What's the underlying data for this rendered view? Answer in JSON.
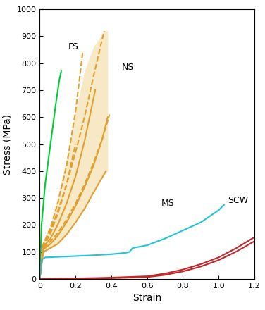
{
  "chart_data": {
    "type": "line",
    "x_label": "Strain",
    "y_label": "Stress (MPa)",
    "xlim": [
      0,
      1.2
    ],
    "xticks": [
      0,
      0.2,
      0.4,
      0.6,
      0.8,
      1.0,
      1.2
    ],
    "ylim": [
      0,
      1000
    ],
    "yticks": [
      0,
      100,
      200,
      300,
      400,
      500,
      600,
      700,
      800,
      900,
      1000
    ],
    "grid": false,
    "series": [
      {
        "type": "band",
        "color": "#f3d9a0",
        "x": [
          0,
          0.02,
          0.06,
          0.1,
          0.15,
          0.2,
          0.25,
          0.3,
          0.36,
          0.38
        ],
        "low": [
          0,
          100,
          115,
          130,
          165,
          210,
          260,
          320,
          390,
          400
        ],
        "high": [
          0,
          135,
          200,
          300,
          450,
          620,
          770,
          860,
          920,
          920
        ]
      },
      {
        "color": "#00cc33",
        "line_style": "solid",
        "x": [
          0,
          0.01,
          0.03,
          0.06,
          0.09,
          0.11,
          0.12
        ],
        "values": [
          0,
          200,
          350,
          500,
          650,
          740,
          770
        ]
      },
      {
        "color": "#e0a030",
        "line_style": "solid",
        "x": [
          0,
          0.02,
          0.06,
          0.1,
          0.15,
          0.2,
          0.25,
          0.3,
          0.37
        ],
        "values": [
          0,
          100,
          115,
          130,
          165,
          210,
          260,
          320,
          400
        ]
      },
      {
        "color": "#e0a030",
        "line_style": "solid",
        "x": [
          0,
          0.02,
          0.06,
          0.1,
          0.15,
          0.2,
          0.25,
          0.3,
          0.35,
          0.38
        ],
        "values": [
          0,
          110,
          130,
          160,
          210,
          270,
          340,
          420,
          520,
          600
        ]
      },
      {
        "color": "#e0a030",
        "line_style": "solid",
        "x": [
          0,
          0.02,
          0.06,
          0.1,
          0.15,
          0.2,
          0.25,
          0.31
        ],
        "values": [
          0,
          120,
          150,
          200,
          280,
          380,
          510,
          700
        ]
      },
      {
        "color": "#e0a030",
        "line_style": "dashed",
        "x": [
          0,
          0.02,
          0.06,
          0.1,
          0.15,
          0.2,
          0.25,
          0.3,
          0.36
        ],
        "values": [
          0,
          130,
          180,
          250,
          350,
          470,
          600,
          750,
          920
        ]
      },
      {
        "color": "#e0a030",
        "line_style": "dashed",
        "x": [
          0,
          0.02,
          0.06,
          0.1,
          0.15,
          0.2,
          0.24
        ],
        "values": [
          0,
          130,
          190,
          280,
          420,
          620,
          840
        ]
      },
      {
        "color": "#e0a030",
        "line_style": "dashed",
        "x": [
          0,
          0.02,
          0.06,
          0.1,
          0.15,
          0.2
        ],
        "values": [
          0,
          120,
          170,
          240,
          350,
          500
        ]
      },
      {
        "color": "#e0a030",
        "line_style": "dashed",
        "x": [
          0,
          0.02,
          0.06,
          0.1,
          0.15,
          0.2,
          0.25,
          0.3,
          0.35,
          0.39
        ],
        "values": [
          0,
          115,
          140,
          170,
          220,
          280,
          350,
          430,
          520,
          610
        ]
      },
      {
        "color": "#22c4d4",
        "line_style": "solid",
        "x": [
          0,
          0.01,
          0.03,
          0.1,
          0.2,
          0.3,
          0.4,
          0.48,
          0.5,
          0.52,
          0.6,
          0.7,
          0.8,
          0.9,
          1.0,
          1.03
        ],
        "values": [
          0,
          70,
          80,
          82,
          85,
          88,
          92,
          97,
          100,
          115,
          125,
          150,
          180,
          210,
          255,
          275
        ]
      },
      {
        "color": "#c0282a",
        "line_style": "solid",
        "x": [
          0,
          0.2,
          0.4,
          0.6,
          0.7,
          0.8,
          0.9,
          1.0,
          1.1,
          1.2
        ],
        "values": [
          0,
          2,
          5,
          10,
          20,
          35,
          55,
          80,
          115,
          155
        ]
      },
      {
        "color": "#c0282a",
        "line_style": "solid",
        "x": [
          0,
          0.2,
          0.4,
          0.6,
          0.7,
          0.8,
          0.9,
          1.0,
          1.1,
          1.2
        ],
        "values": [
          0,
          1,
          3,
          7,
          15,
          28,
          46,
          70,
          102,
          140
        ]
      }
    ],
    "annotations": [
      {
        "text": "FS",
        "x": 0.16,
        "y": 860
      },
      {
        "text": "NS",
        "x": 0.46,
        "y": 785
      },
      {
        "text": "MS",
        "x": 0.68,
        "y": 280
      },
      {
        "text": "SCW",
        "x": 1.05,
        "y": 290
      }
    ]
  }
}
